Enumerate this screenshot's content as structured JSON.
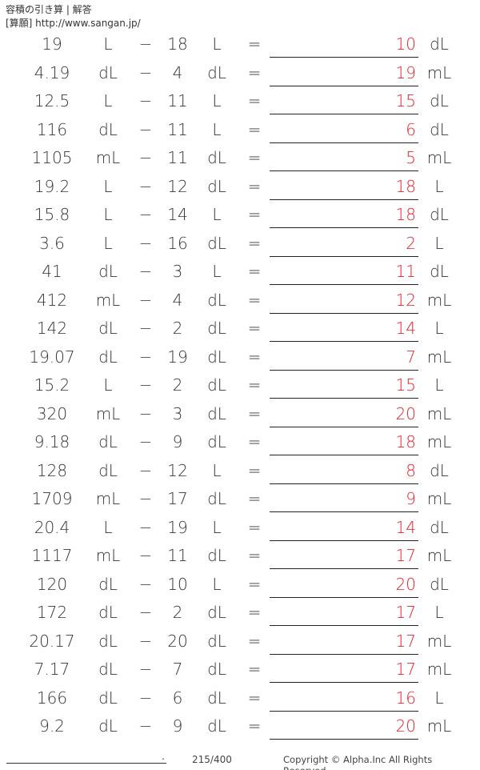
{
  "header": {
    "title": "容積の引き算 | 解答",
    "source": "[算願] http://www.sangan.jp/"
  },
  "operator": "−",
  "equals": "=",
  "answer_color": "#e8202a",
  "problems": [
    {
      "a": "19",
      "au": "L",
      "b": "18",
      "bu": "L",
      "ans": "10",
      "ansu": "dL"
    },
    {
      "a": "4.19",
      "au": "dL",
      "b": "4",
      "bu": "dL",
      "ans": "19",
      "ansu": "mL"
    },
    {
      "a": "12.5",
      "au": "L",
      "b": "11",
      "bu": "L",
      "ans": "15",
      "ansu": "dL"
    },
    {
      "a": "116",
      "au": "dL",
      "b": "11",
      "bu": "L",
      "ans": "6",
      "ansu": "dL"
    },
    {
      "a": "1105",
      "au": "mL",
      "b": "11",
      "bu": "dL",
      "ans": "5",
      "ansu": "mL"
    },
    {
      "a": "19.2",
      "au": "L",
      "b": "12",
      "bu": "dL",
      "ans": "18",
      "ansu": "L"
    },
    {
      "a": "15.8",
      "au": "L",
      "b": "14",
      "bu": "L",
      "ans": "18",
      "ansu": "dL"
    },
    {
      "a": "3.6",
      "au": "L",
      "b": "16",
      "bu": "dL",
      "ans": "2",
      "ansu": "L"
    },
    {
      "a": "41",
      "au": "dL",
      "b": "3",
      "bu": "L",
      "ans": "11",
      "ansu": "dL"
    },
    {
      "a": "412",
      "au": "mL",
      "b": "4",
      "bu": "dL",
      "ans": "12",
      "ansu": "mL"
    },
    {
      "a": "142",
      "au": "dL",
      "b": "2",
      "bu": "dL",
      "ans": "14",
      "ansu": "L"
    },
    {
      "a": "19.07",
      "au": "dL",
      "b": "19",
      "bu": "dL",
      "ans": "7",
      "ansu": "mL"
    },
    {
      "a": "15.2",
      "au": "L",
      "b": "2",
      "bu": "dL",
      "ans": "15",
      "ansu": "L"
    },
    {
      "a": "320",
      "au": "mL",
      "b": "3",
      "bu": "dL",
      "ans": "20",
      "ansu": "mL"
    },
    {
      "a": "9.18",
      "au": "dL",
      "b": "9",
      "bu": "dL",
      "ans": "18",
      "ansu": "mL"
    },
    {
      "a": "128",
      "au": "dL",
      "b": "12",
      "bu": "L",
      "ans": "8",
      "ansu": "dL"
    },
    {
      "a": "1709",
      "au": "mL",
      "b": "17",
      "bu": "dL",
      "ans": "9",
      "ansu": "mL"
    },
    {
      "a": "20.4",
      "au": "L",
      "b": "19",
      "bu": "L",
      "ans": "14",
      "ansu": "dL"
    },
    {
      "a": "1117",
      "au": "mL",
      "b": "11",
      "bu": "dL",
      "ans": "17",
      "ansu": "mL"
    },
    {
      "a": "120",
      "au": "dL",
      "b": "10",
      "bu": "L",
      "ans": "20",
      "ansu": "dL"
    },
    {
      "a": "172",
      "au": "dL",
      "b": "2",
      "bu": "dL",
      "ans": "17",
      "ansu": "L"
    },
    {
      "a": "20.17",
      "au": "dL",
      "b": "20",
      "bu": "dL",
      "ans": "17",
      "ansu": "mL"
    },
    {
      "a": "7.17",
      "au": "dL",
      "b": "7",
      "bu": "dL",
      "ans": "17",
      "ansu": "mL"
    },
    {
      "a": "166",
      "au": "dL",
      "b": "6",
      "bu": "dL",
      "ans": "16",
      "ansu": "L"
    },
    {
      "a": "9.2",
      "au": "dL",
      "b": "9",
      "bu": "dL",
      "ans": "20",
      "ansu": "mL"
    }
  ],
  "footer": {
    "dot": ".",
    "page": "215/400",
    "copyright": "Copyright © Alpha.Inc All Rights Reserved."
  }
}
